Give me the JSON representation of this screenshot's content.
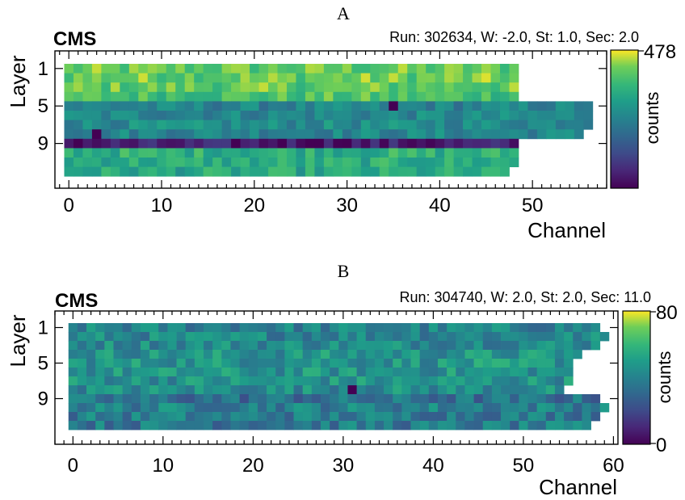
{
  "chart_data": [
    {
      "type": "heatmap",
      "panel": "A",
      "brand": "CMS",
      "info": "Run: 302634, W: -2.0, St: 1.0, Sec: 2.0",
      "xlabel": "Channel",
      "ylabel": "Layer",
      "x_ticks": [
        "0",
        "10",
        "20",
        "30",
        "40",
        "50"
      ],
      "y_ticks": [
        "1",
        "5",
        "9"
      ],
      "xlim": [
        -1.5,
        58
      ],
      "colorbar": {
        "label": "counts",
        "max_label": "478",
        "vmin": 0,
        "vmax": 478
      },
      "layer_channel_counts": [
        49,
        49,
        49,
        49,
        57,
        57,
        57,
        56,
        49,
        49,
        49,
        48
      ],
      "layer_typical_counts": [
        400,
        410,
        400,
        380,
        240,
        250,
        260,
        250,
        40,
        340,
        330,
        320
      ],
      "hot_cells": [
        {
          "layer": 5,
          "channel": 35,
          "value": 0
        },
        {
          "layer": 8,
          "channel": 3,
          "value": 0
        }
      ]
    },
    {
      "type": "heatmap",
      "panel": "B",
      "brand": "CMS",
      "info": "Run: 304740, W: 2.0, St: 2.0, Sec: 11.0",
      "xlabel": "Channel",
      "ylabel": "Layer",
      "x_ticks": [
        "0",
        "10",
        "20",
        "30",
        "40",
        "50",
        "60"
      ],
      "y_ticks": [
        "1",
        "5",
        "9"
      ],
      "xlim": [
        -2,
        60.5
      ],
      "colorbar": {
        "label": "counts",
        "max_label": "80",
        "min_label": "0",
        "vmin": 0,
        "vmax": 80
      },
      "layer_channel_counts": [
        59,
        60,
        59,
        57,
        56,
        56,
        56,
        55,
        59,
        60,
        59,
        58
      ],
      "layer_typical_counts": [
        40,
        42,
        44,
        46,
        47,
        46,
        46,
        44,
        33,
        40,
        38,
        37
      ],
      "hot_cells": [
        {
          "layer": 8,
          "channel": 31,
          "value": 0
        }
      ]
    }
  ]
}
